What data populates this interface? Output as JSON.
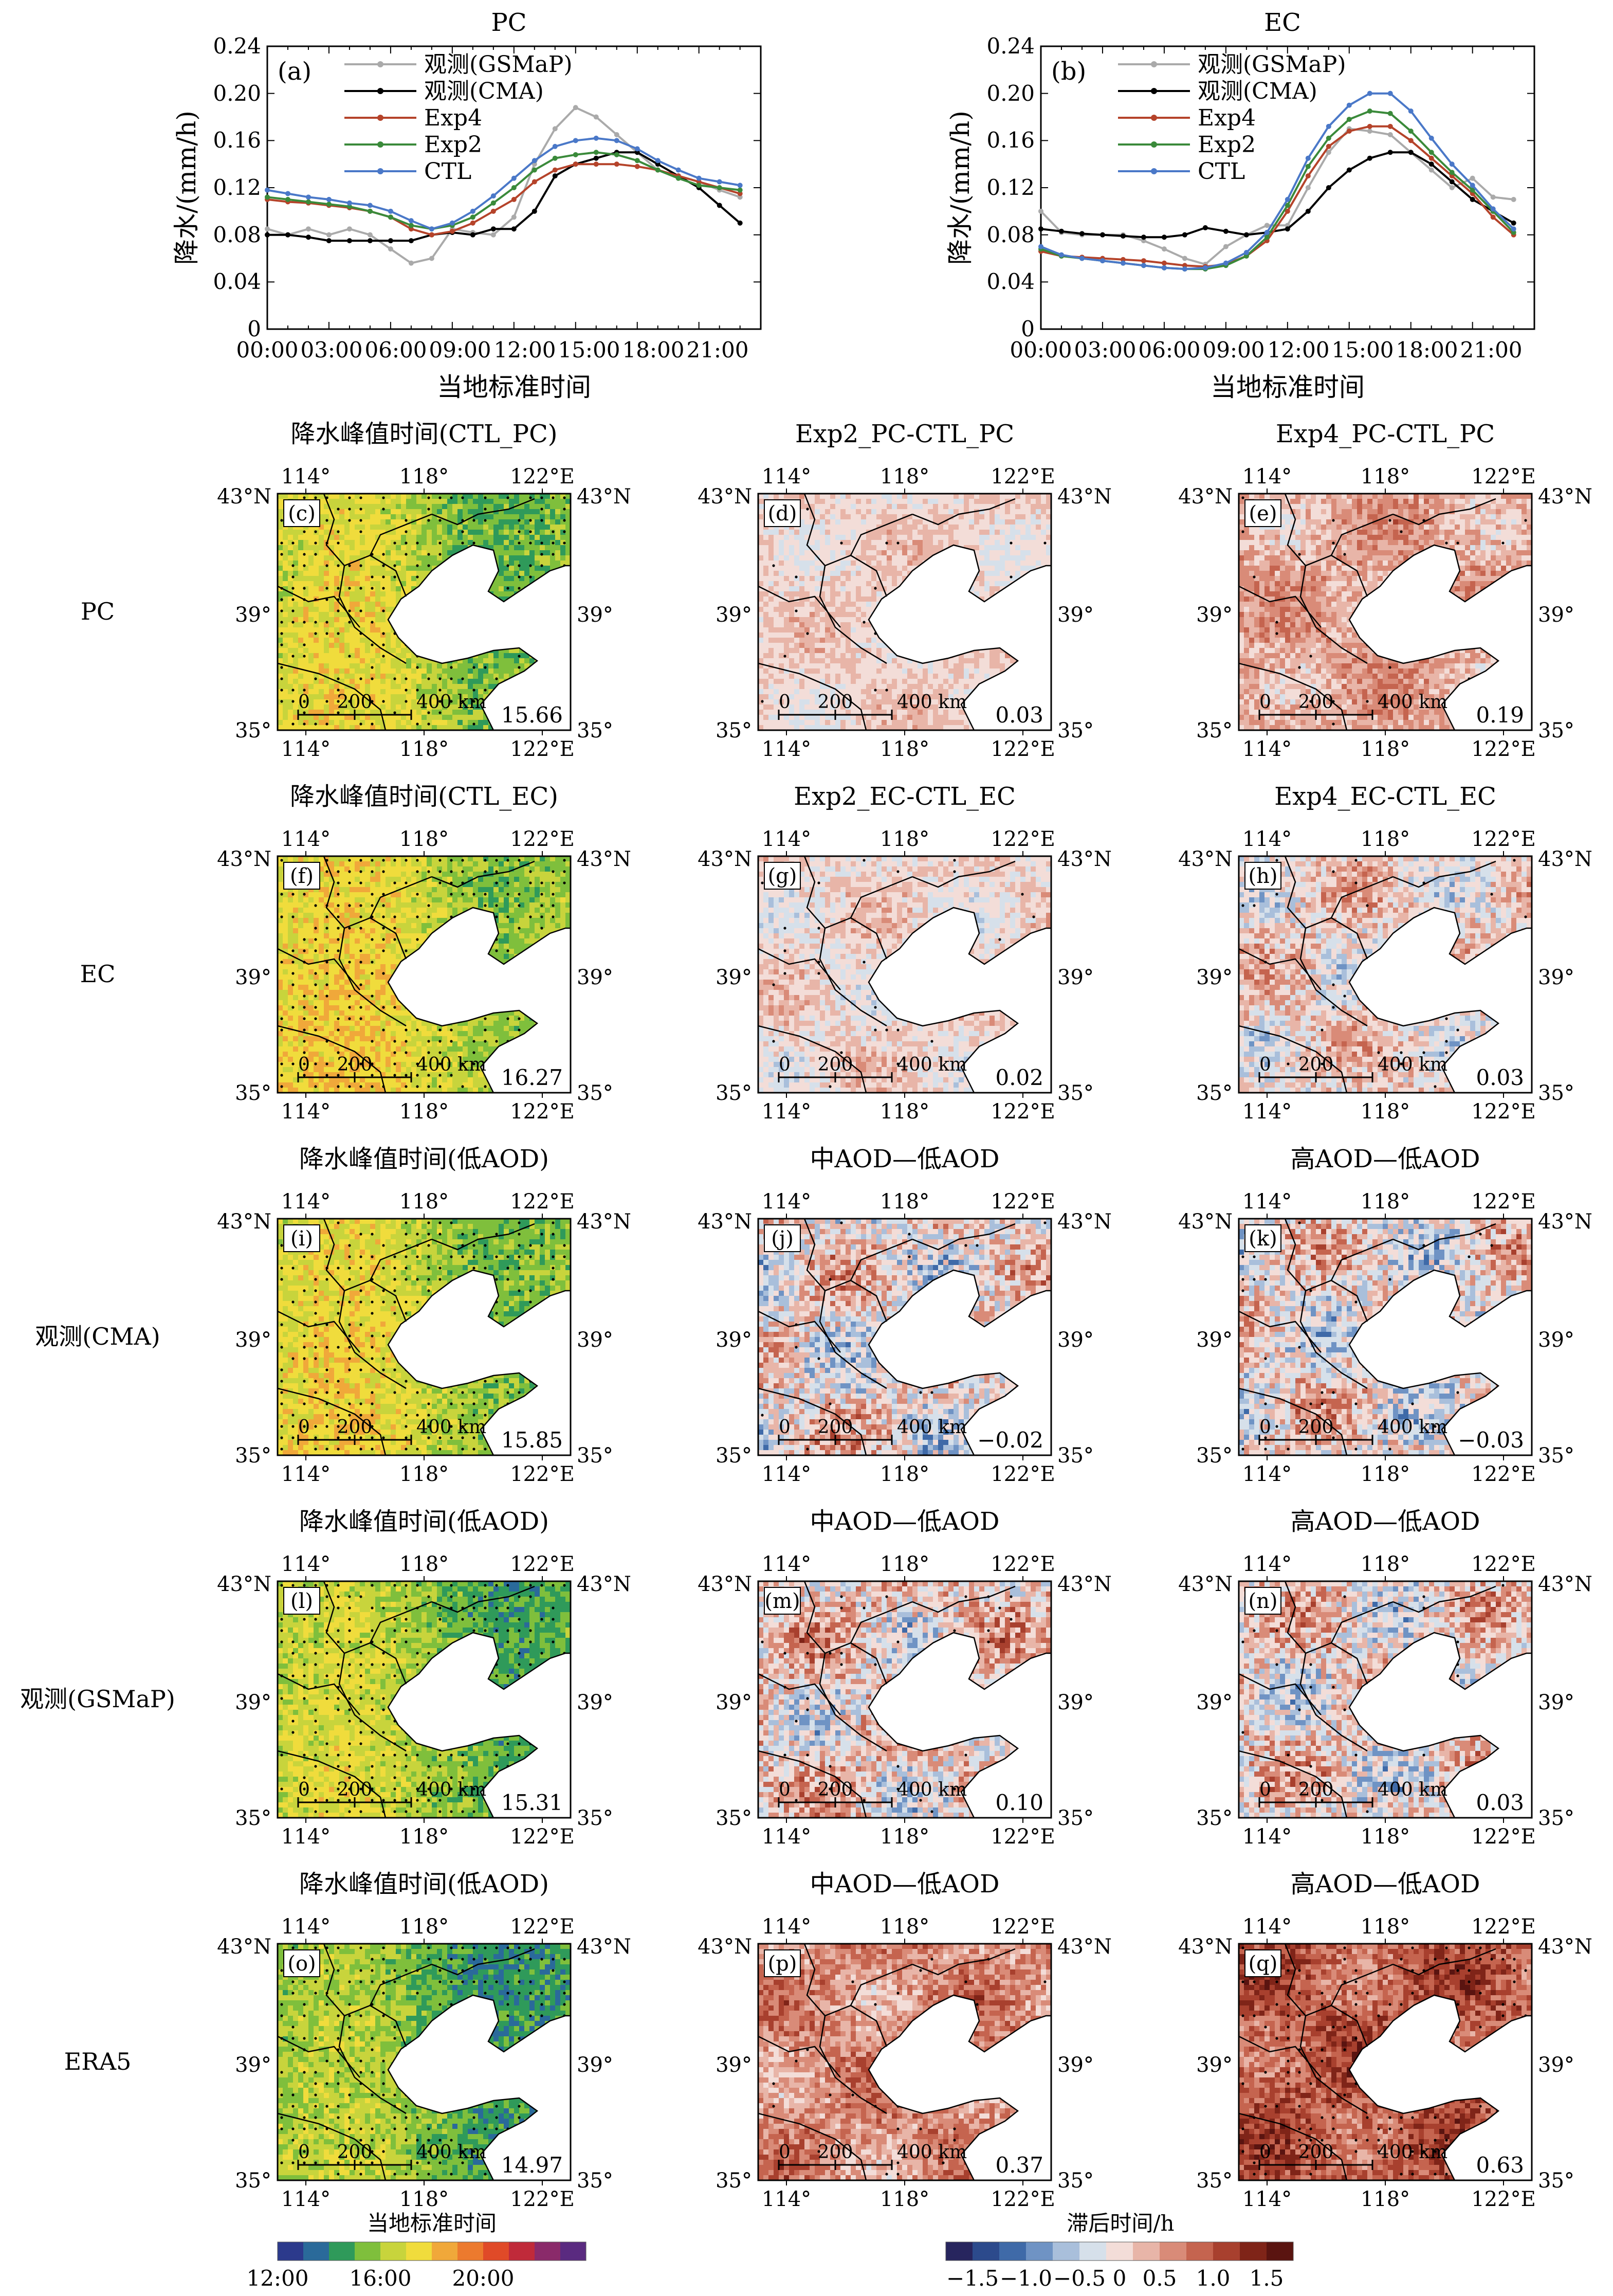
{
  "line_charts": [
    {
      "title": "PC",
      "panel_label": "(a)",
      "ylabel": "降水/(mm/h)",
      "xlabel": "当地标准时间",
      "ylim": [
        0,
        0.24
      ],
      "yticks": [
        "0",
        "0.04",
        "0.08",
        "0.12",
        "0.16",
        "0.20",
        "0.24"
      ],
      "xticks": [
        "00:00",
        "03:00",
        "06:00",
        "09:00",
        "12:00",
        "15:00",
        "18:00",
        "21:00"
      ],
      "legend": [
        "观测(GSMaP)",
        "观测(CMA)",
        "Exp4",
        "Exp2",
        "CTL"
      ]
    },
    {
      "title": "EC",
      "panel_label": "(b)",
      "ylabel": "降水/(mm/h)",
      "xlabel": "当地标准时间",
      "ylim": [
        0,
        0.24
      ],
      "yticks": [
        "0",
        "0.04",
        "0.08",
        "0.12",
        "0.16",
        "0.20",
        "0.24"
      ],
      "xticks": [
        "00:00",
        "03:00",
        "06:00",
        "09:00",
        "12:00",
        "15:00",
        "18:00",
        "21:00"
      ],
      "legend": [
        "观测(GSMaP)",
        "观测(CMA)",
        "Exp4",
        "Exp2",
        "CTL"
      ]
    }
  ],
  "chart_data": [
    {
      "type": "line",
      "title": "PC",
      "xlabel": "当地标准时间",
      "ylabel": "降水/(mm/h)",
      "ylim": [
        0,
        0.24
      ],
      "x": [
        0,
        1,
        2,
        3,
        4,
        5,
        6,
        7,
        8,
        9,
        10,
        11,
        12,
        13,
        14,
        15,
        16,
        17,
        18,
        19,
        20,
        21,
        22,
        23
      ],
      "series": [
        {
          "name": "观测(GSMaP)",
          "color": "#aaaaaa",
          "values": [
            0.085,
            0.08,
            0.085,
            0.08,
            0.085,
            0.08,
            0.068,
            0.056,
            0.06,
            0.085,
            0.082,
            0.08,
            0.095,
            0.14,
            0.17,
            0.188,
            0.18,
            0.165,
            0.15,
            0.135,
            0.13,
            0.125,
            0.118,
            0.112
          ]
        },
        {
          "name": "观测(CMA)",
          "color": "#000000",
          "values": [
            0.08,
            0.08,
            0.078,
            0.075,
            0.075,
            0.075,
            0.075,
            0.075,
            0.08,
            0.082,
            0.08,
            0.085,
            0.085,
            0.1,
            0.13,
            0.14,
            0.145,
            0.15,
            0.15,
            0.14,
            0.13,
            0.12,
            0.105,
            0.09
          ]
        },
        {
          "name": "Exp4",
          "color": "#b5432a",
          "values": [
            0.11,
            0.108,
            0.107,
            0.105,
            0.103,
            0.1,
            0.095,
            0.085,
            0.08,
            0.083,
            0.09,
            0.1,
            0.11,
            0.125,
            0.135,
            0.14,
            0.14,
            0.14,
            0.138,
            0.135,
            0.13,
            0.125,
            0.12,
            0.115
          ]
        },
        {
          "name": "Exp2",
          "color": "#3a8a3a",
          "values": [
            0.112,
            0.11,
            0.108,
            0.106,
            0.104,
            0.1,
            0.095,
            0.088,
            0.085,
            0.088,
            0.095,
            0.107,
            0.12,
            0.135,
            0.145,
            0.148,
            0.15,
            0.148,
            0.143,
            0.135,
            0.128,
            0.122,
            0.12,
            0.118
          ]
        },
        {
          "name": "CTL",
          "color": "#4a78c8",
          "values": [
            0.118,
            0.115,
            0.112,
            0.11,
            0.107,
            0.105,
            0.1,
            0.092,
            0.085,
            0.09,
            0.1,
            0.113,
            0.128,
            0.143,
            0.155,
            0.16,
            0.162,
            0.16,
            0.153,
            0.143,
            0.135,
            0.128,
            0.125,
            0.122
          ]
        }
      ]
    },
    {
      "type": "line",
      "title": "EC",
      "xlabel": "当地标准时间",
      "ylabel": "降水/(mm/h)",
      "ylim": [
        0,
        0.24
      ],
      "x": [
        0,
        1,
        2,
        3,
        4,
        5,
        6,
        7,
        8,
        9,
        10,
        11,
        12,
        13,
        14,
        15,
        16,
        17,
        18,
        19,
        20,
        21,
        22,
        23
      ],
      "series": [
        {
          "name": "观测(GSMaP)",
          "color": "#aaaaaa",
          "values": [
            0.1,
            0.082,
            0.08,
            0.08,
            0.08,
            0.075,
            0.068,
            0.06,
            0.055,
            0.07,
            0.08,
            0.088,
            0.088,
            0.12,
            0.15,
            0.17,
            0.168,
            0.165,
            0.15,
            0.135,
            0.12,
            0.128,
            0.112,
            0.11
          ]
        },
        {
          "name": "观测(CMA)",
          "color": "#000000",
          "values": [
            0.085,
            0.083,
            0.081,
            0.08,
            0.079,
            0.078,
            0.078,
            0.08,
            0.086,
            0.083,
            0.08,
            0.082,
            0.085,
            0.1,
            0.12,
            0.135,
            0.145,
            0.15,
            0.15,
            0.14,
            0.125,
            0.11,
            0.1,
            0.09
          ]
        },
        {
          "name": "Exp4",
          "color": "#b5432a",
          "values": [
            0.066,
            0.062,
            0.061,
            0.06,
            0.059,
            0.058,
            0.056,
            0.054,
            0.053,
            0.055,
            0.062,
            0.075,
            0.1,
            0.13,
            0.155,
            0.168,
            0.172,
            0.172,
            0.16,
            0.145,
            0.13,
            0.115,
            0.095,
            0.08
          ]
        },
        {
          "name": "Exp2",
          "color": "#3a8a3a",
          "values": [
            0.068,
            0.062,
            0.06,
            0.058,
            0.056,
            0.054,
            0.052,
            0.051,
            0.051,
            0.054,
            0.062,
            0.078,
            0.105,
            0.138,
            0.162,
            0.178,
            0.185,
            0.183,
            0.168,
            0.15,
            0.133,
            0.118,
            0.1,
            0.082
          ]
        },
        {
          "name": "CTL",
          "color": "#4a78c8",
          "values": [
            0.07,
            0.063,
            0.06,
            0.058,
            0.056,
            0.054,
            0.052,
            0.051,
            0.052,
            0.056,
            0.065,
            0.082,
            0.11,
            0.145,
            0.172,
            0.19,
            0.2,
            0.2,
            0.185,
            0.162,
            0.14,
            0.122,
            0.102,
            0.085
          ]
        }
      ]
    }
  ],
  "map_grid": {
    "lon_ticks": [
      "114°",
      "118°",
      "122°E"
    ],
    "lat_left": [
      "43°N",
      "39°",
      "35°"
    ],
    "lat_right": [
      "43°N",
      "39°",
      "35°"
    ],
    "scale_labels": [
      "0",
      "200",
      "400 km"
    ],
    "rows": [
      {
        "label": "PC",
        "panels": [
          {
            "title": "降水峰值时间(CTL_PC)",
            "letter": "(c)",
            "value": "15.66",
            "kind": "abs",
            "base": "#e8b93c",
            "shift": 0.2
          },
          {
            "title": "Exp2_PC-CTL_PC",
            "letter": "(d)",
            "value": "0.03",
            "kind": "diff",
            "bias": 0.05,
            "spread": 0.35
          },
          {
            "title": "Exp4_PC-CTL_PC",
            "letter": "(e)",
            "value": "0.19",
            "kind": "diff",
            "bias": 0.3,
            "spread": 0.5
          }
        ]
      },
      {
        "label": "EC",
        "panels": [
          {
            "title": "降水峰值时间(CTL_EC)",
            "letter": "(f)",
            "value": "16.27",
            "kind": "abs",
            "base": "#e89a3a",
            "shift": 0.6
          },
          {
            "title": "Exp2_EC-CTL_EC",
            "letter": "(g)",
            "value": "0.02",
            "kind": "diff",
            "bias": 0.02,
            "spread": 0.45
          },
          {
            "title": "Exp4_EC-CTL_EC",
            "letter": "(h)",
            "value": "0.03",
            "kind": "diff",
            "bias": 0.05,
            "spread": 0.7
          }
        ]
      },
      {
        "label": "观测(CMA)",
        "panels": [
          {
            "title": "降水峰值时间(低AOD)",
            "letter": "(i)",
            "value": "15.85",
            "kind": "abs",
            "base": "#e8b23a",
            "shift": 0.4
          },
          {
            "title": "中AOD—低AOD",
            "letter": "(j)",
            "value": "−0.02",
            "kind": "diff",
            "bias": 0.0,
            "spread": 0.9
          },
          {
            "title": "高AOD—低AOD",
            "letter": "(k)",
            "value": "−0.03",
            "kind": "diff",
            "bias": 0.0,
            "spread": 0.9
          }
        ]
      },
      {
        "label": "观测(GSMaP)",
        "panels": [
          {
            "title": "降水峰值时间(低AOD)",
            "letter": "(l)",
            "value": "15.31",
            "kind": "abs",
            "base": "#c9cf3c",
            "shift": -0.1
          },
          {
            "title": "中AOD—低AOD",
            "letter": "(m)",
            "value": "0.10",
            "kind": "diff",
            "bias": 0.1,
            "spread": 0.9
          },
          {
            "title": "高AOD—低AOD",
            "letter": "(n)",
            "value": "0.03",
            "kind": "diff",
            "bias": 0.05,
            "spread": 0.9
          }
        ]
      },
      {
        "label": "ERA5",
        "panels": [
          {
            "title": "降水峰值时间(低AOD)",
            "letter": "(o)",
            "value": "14.97",
            "kind": "abs",
            "base": "#b9c93c",
            "shift": -0.5
          },
          {
            "title": "中AOD—低AOD",
            "letter": "(p)",
            "value": "0.37",
            "kind": "diff",
            "bias": 0.45,
            "spread": 0.6
          },
          {
            "title": "高AOD—低AOD",
            "letter": "(q)",
            "value": "0.63",
            "kind": "diff",
            "bias": 0.75,
            "spread": 0.6
          }
        ]
      }
    ]
  },
  "colorbars": [
    {
      "title": "当地标准时间",
      "labels": [
        "12:00",
        "16:00",
        "20:00"
      ],
      "colors": [
        "#2c3a8c",
        "#2a6a9a",
        "#2f9a5a",
        "#7fbf3c",
        "#c8d43c",
        "#f0dc3c",
        "#f0a83a",
        "#ec7a2e",
        "#e04a28",
        "#c02a3a",
        "#8a2a6a",
        "#5a2a80"
      ]
    },
    {
      "title": "滞后时间/h",
      "labels": [
        "−1.5",
        "−1.0",
        "−0.5",
        "0",
        "0.5",
        "1.0",
        "1.5"
      ],
      "colors": [
        "#27255e",
        "#2c4a8c",
        "#3f6aa8",
        "#6f93c4",
        "#a9bfdb",
        "#d6e0ea",
        "#f3ddd8",
        "#e8b5a8",
        "#d98b78",
        "#c5644f",
        "#a8402e",
        "#7f2418",
        "#5a1410"
      ]
    }
  ]
}
